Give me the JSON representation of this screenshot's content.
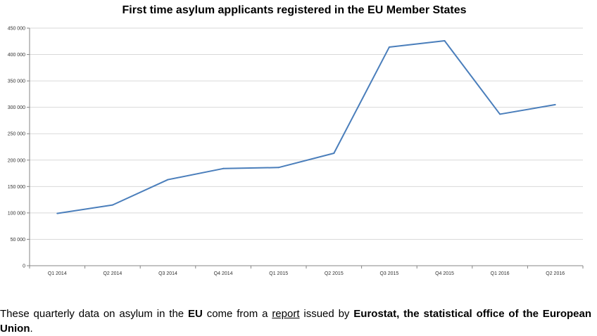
{
  "chart_data": {
    "type": "line",
    "title": "First time asylum applicants registered in the EU Member States",
    "xlabel": "",
    "ylabel": "",
    "categories": [
      "Q1 2014",
      "Q2 2014",
      "Q3 2014",
      "Q4 2014",
      "Q1 2015",
      "Q2 2015",
      "Q3 2015",
      "Q4 2015",
      "Q1 2016",
      "Q2 2016"
    ],
    "series": [
      {
        "values": [
          99000,
          115000,
          163000,
          184000,
          186000,
          213000,
          414000,
          426000,
          287000,
          305000
        ]
      }
    ],
    "y_tick_labels": [
      "0",
      "50 000",
      "100 000",
      "150 000",
      "200 000",
      "250 000",
      "300 000",
      "350 000",
      "400 000",
      "450 000"
    ],
    "ylim": [
      0,
      450000
    ],
    "y_step": 50000,
    "grid": true,
    "legend": "none",
    "line_color": "#4a7ebb",
    "grid_color": "#d9d9d9"
  },
  "caption": {
    "t1": "These quarterly data on asylum in the ",
    "t2": "EU",
    "t3": " come from a ",
    "link": "report",
    "t4": " issued by ",
    "t5": "Eurostat, the statistical office of the European Union",
    "t6": "."
  }
}
